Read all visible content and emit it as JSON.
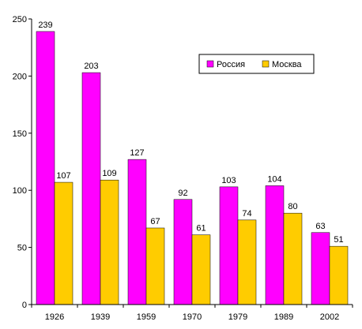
{
  "chart_data": {
    "type": "bar",
    "categories": [
      "1926",
      "1939",
      "1959",
      "1970",
      "1979",
      "1989",
      "2002"
    ],
    "series": [
      {
        "name": "Россия",
        "color": "#ff00ff",
        "values": [
          239,
          203,
          127,
          92,
          103,
          104,
          63
        ]
      },
      {
        "name": "Москва",
        "color": "#ffcc00",
        "values": [
          107,
          109,
          67,
          61,
          74,
          80,
          51
        ]
      }
    ],
    "y_ticks": [
      "0",
      "50",
      "100",
      "150",
      "200",
      "250"
    ],
    "ylim": [
      0,
      250
    ],
    "grid": false,
    "legend_position": "top-right",
    "data_labels": true,
    "title": "",
    "xlabel": "",
    "ylabel": ""
  }
}
